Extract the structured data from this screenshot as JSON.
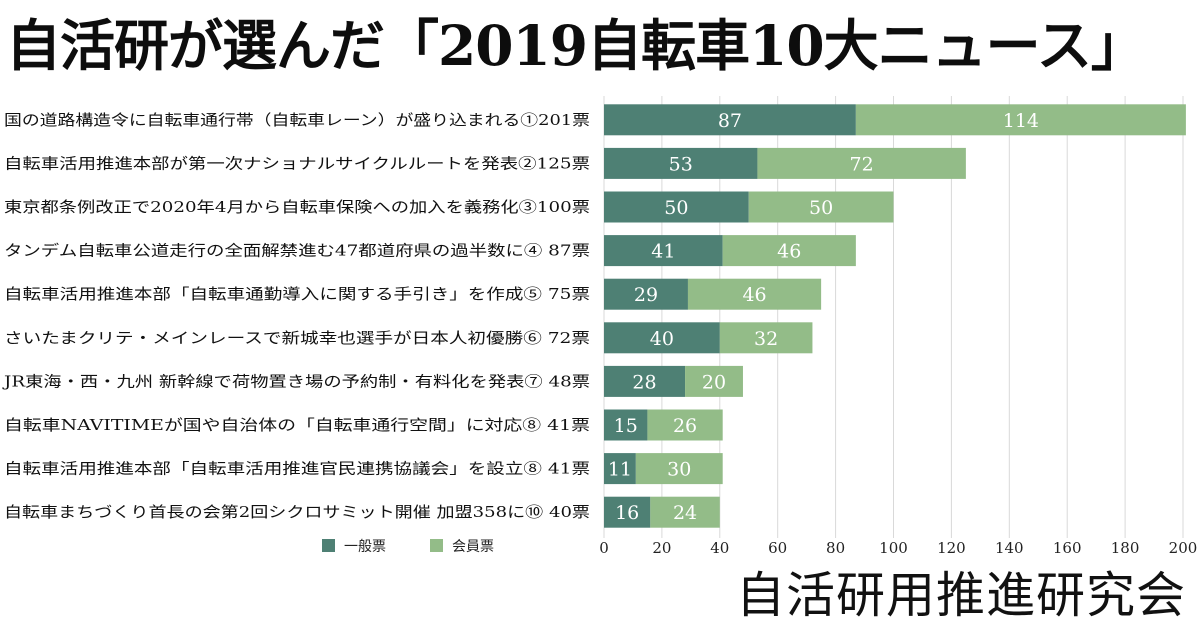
{
  "title": "自活研が選んだ「2019自転車10大ニュース」",
  "organization": "自活研用推進研究会",
  "chart_data": {
    "type": "bar",
    "orientation": "horizontal",
    "stacked": true,
    "categories": [
      "国の道路構造令に自転車通行帯（自転車レーン）が盛り込まれる①201票",
      "自転車活用推進本部が第一次ナショナルサイクルルートを発表②125票",
      "東京都条例改正で2020年4月から自転車保険への加入を義務化③100票",
      "タンデム自転車公道走行の全面解禁進む47都道府県の過半数に④ 87票",
      "自転車活用推進本部「自転車通勤導入に関する手引き」を作成⑤ 75票",
      "さいたまクリテ・メインレースで新城幸也選手が日本人初優勝⑥ 72票",
      "JR東海・西・九州 新幹線で荷物置き場の予約制・有料化を発表⑦ 48票",
      "自転車NAVITIMEが国や自治体の「自転車通行空間」に対応⑧ 41票",
      "自転車活用推進本部「自転車活用推進官民連携協議会」を設立⑧ 41票",
      "自転車まちづくり首長の会第2回シクロサミット開催 加盟358に⑩ 40票"
    ],
    "series": [
      {
        "name": "一般票",
        "color": "#4e8074",
        "values": [
          87,
          53,
          50,
          41,
          29,
          40,
          28,
          15,
          11,
          16
        ]
      },
      {
        "name": "会員票",
        "color": "#93bc88",
        "values": [
          114,
          72,
          50,
          46,
          46,
          32,
          20,
          26,
          30,
          24
        ]
      }
    ],
    "xlim": [
      0,
      200
    ],
    "xticks": [
      "0",
      "20",
      "40",
      "60",
      "80",
      "100",
      "120",
      "140",
      "160",
      "180",
      "200"
    ],
    "grid": true,
    "legend_position": "bottom-left"
  }
}
